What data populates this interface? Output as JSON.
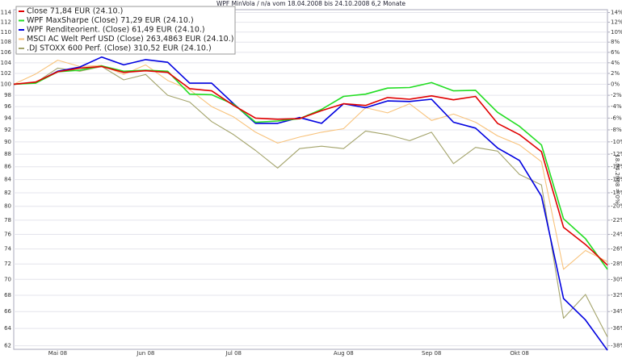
{
  "chart_data": {
    "type": "line",
    "title": "WPF MinVola / n/a vom 18.04.2008 bis 24.10.2008 6,2 Monate",
    "y2_label": "18.04.2008 = 0%",
    "categories": [
      null,
      null,
      "Mai 08",
      null,
      null,
      null,
      "Jun 08",
      null,
      null,
      null,
      "Jul 08",
      null,
      null,
      null,
      null,
      "Aug 08",
      null,
      null,
      null,
      "Sep 08",
      null,
      null,
      null,
      "Okt 08",
      null,
      null,
      null,
      null
    ],
    "series": [
      {
        "name": "Close 71,84 EUR (24.10.)",
        "color": "#e00000",
        "values": [
          100,
          100.4,
          102.3,
          103,
          103.3,
          102.2,
          102.5,
          102.2,
          99.2,
          98.8,
          96.2,
          94,
          93.8,
          93.9,
          95.3,
          96.5,
          96.2,
          97.6,
          97.3,
          97.9,
          97.2,
          97.8,
          93.1,
          91.2,
          88.4,
          77,
          74.6,
          71.84
        ]
      },
      {
        "name": "WPF MaxSharpe (Close) 71,29 EUR (24.10.)",
        "color": "#22dd22",
        "values": [
          100,
          100.2,
          102.3,
          102.6,
          103.4,
          102.4,
          102.6,
          102.4,
          98.2,
          98.1,
          96.4,
          93.3,
          93.5,
          93.9,
          95.5,
          97.8,
          98.2,
          99.3,
          99.4,
          100.3,
          98.8,
          98.9,
          95,
          92.6,
          89.5,
          78.2,
          75.4,
          71.29
        ]
      },
      {
        "name": "WPF Renditeorient. (Close) 61,49 EUR (24.10.)",
        "color": "#0000e0",
        "values": [
          100,
          100.3,
          102.4,
          103.2,
          105.1,
          103.6,
          104.6,
          104.1,
          100.2,
          100.2,
          96.5,
          93.1,
          93.1,
          94.1,
          93.1,
          96.5,
          95.8,
          97,
          96.9,
          97.3,
          93.3,
          92.3,
          89,
          87,
          81.5,
          67.6,
          65,
          61.49
        ]
      },
      {
        "name": "MSCI AC Welt Perf USD (Close) 263,4863 EUR (24.10.)",
        "color": "#f8c27a",
        "values": [
          100,
          101.9,
          104.5,
          103.3,
          103.5,
          101.8,
          103.6,
          100.7,
          99,
          96,
          94.2,
          91.6,
          89.8,
          90.8,
          91.6,
          92.2,
          95.8,
          94.9,
          96.5,
          93.6,
          94.7,
          93.3,
          91,
          89.5,
          86.8,
          71.3,
          73.8,
          72.3
        ]
      },
      {
        "name": ".DJ STOXX 600 Perf. (Close) 310,52 EUR (24.10.)",
        "color": "#a3a36a",
        "values": [
          100,
          100.3,
          103,
          102.4,
          103.3,
          100.8,
          101.8,
          98,
          96.8,
          93.4,
          91.2,
          88.6,
          85.8,
          88.9,
          89.3,
          88.9,
          91.8,
          91.2,
          90.2,
          91.6,
          86.5,
          89.1,
          88.5,
          84.8,
          83.2,
          65.2,
          68.1,
          63
        ]
      }
    ],
    "ylim": [
      61.6,
      114.6
    ],
    "yticks": [
      62,
      64,
      66,
      68,
      70,
      72,
      74,
      76,
      78,
      80,
      82,
      84,
      86,
      88,
      90,
      92,
      94,
      96,
      98,
      100,
      102,
      104,
      106,
      108,
      110,
      112,
      114
    ],
    "y2lim": [
      -38.4,
      14.6
    ],
    "y2ticks": [
      {
        "value": -38,
        "label": "-38%"
      },
      {
        "value": -36,
        "label": "-36%"
      },
      {
        "value": -34,
        "label": "-34%"
      },
      {
        "value": -32,
        "label": "-32%"
      },
      {
        "value": -30,
        "label": "-30%"
      },
      {
        "value": -28,
        "label": "-28%"
      },
      {
        "value": -26,
        "label": "-26%"
      },
      {
        "value": -24,
        "label": "-24%"
      },
      {
        "value": -22,
        "label": "-22%"
      },
      {
        "value": -20,
        "label": "-20%"
      },
      {
        "value": -18,
        "label": "-18%"
      },
      {
        "value": -16,
        "label": "-16%"
      },
      {
        "value": -14,
        "label": "-14%"
      },
      {
        "value": -12,
        "label": "-12%"
      },
      {
        "value": -10,
        "label": "-10%"
      },
      {
        "value": -8,
        "label": "-8%"
      },
      {
        "value": -6,
        "label": "-6%"
      },
      {
        "value": -4,
        "label": "-4%"
      },
      {
        "value": -2,
        "label": "-2%"
      },
      {
        "value": 0,
        "label": "0%"
      },
      {
        "value": 2,
        "label": "2%"
      },
      {
        "value": 4,
        "label": "4%"
      },
      {
        "value": 6,
        "label": "6%"
      },
      {
        "value": 8,
        "label": "8%"
      },
      {
        "value": 10,
        "label": "10%"
      },
      {
        "value": 12,
        "label": "12%"
      },
      {
        "value": 14,
        "label": "14%"
      }
    ],
    "log_scale": true,
    "grid": true,
    "legend": "top-left"
  }
}
